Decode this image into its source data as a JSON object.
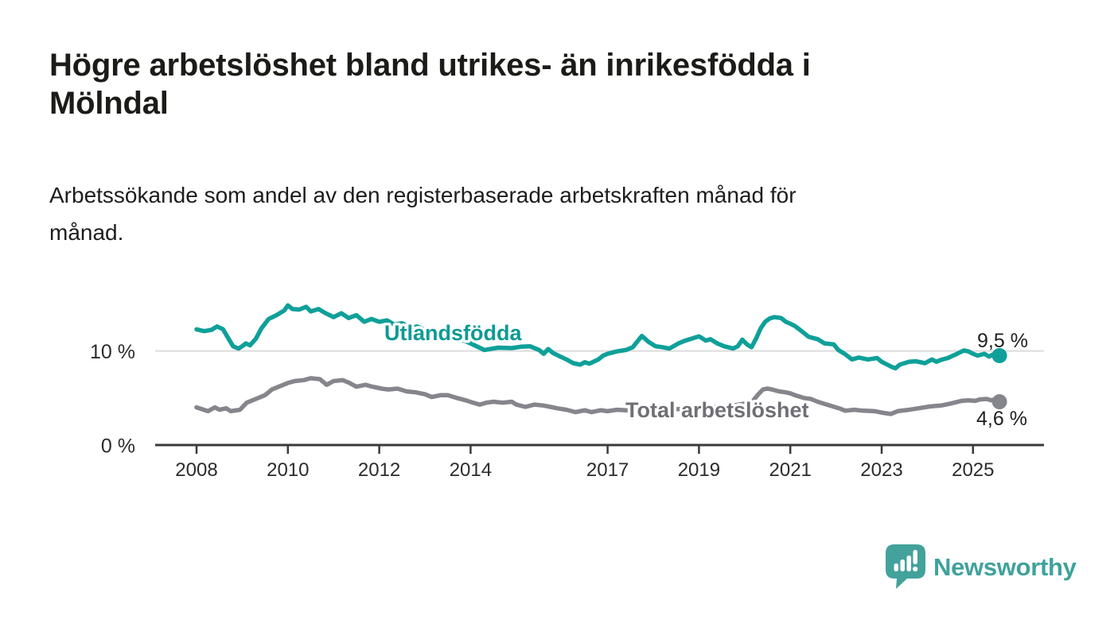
{
  "header": {
    "title": "Högre arbetslöshet bland utrikes- än inrikesfödda i\nMölndal",
    "subtitle": "Arbetssökande som andel av den registerbaserade arbetskraften månad för\nmånad."
  },
  "footer": {
    "brand": "Newsworthy"
  },
  "colors": {
    "axis": "#3a3a3a",
    "grid": "#dcdcdc",
    "tick_text": "#2c2c2c",
    "value_text": "#1f1f1f",
    "teal": "#0fa099",
    "teal_label": "#0d9a94",
    "gray_line": "#85858c",
    "gray_label": "#6f6f75",
    "logo": "#43a29b"
  },
  "chart_data": {
    "type": "line",
    "title": "Högre arbetslöshet bland utrikes- än inrikesfödda i Mölndal",
    "subtitle": "Arbetssökande som andel av den registerbaserade arbetskraften månad för månad.",
    "unit": "%",
    "xlabel": "",
    "ylabel": "",
    "x_range": [
      2008,
      2025.58
    ],
    "ylim": [
      0,
      16
    ],
    "grid": "single horizontal gridline at 10 %",
    "legend_position": "labels drawn on lines",
    "x_ticks": [
      2008,
      2010,
      2012,
      2014,
      2017,
      2019,
      2021,
      2023,
      2025
    ],
    "y_ticks": [
      {
        "value": 0,
        "label": "0 %"
      },
      {
        "value": 10,
        "label": "10 %"
      }
    ],
    "series": [
      {
        "name": "Utlandsfödda",
        "color": "#0fa099",
        "end_label": "9,5 %",
        "end_value": 9.5,
        "points": [
          [
            2008.0,
            12.3
          ],
          [
            2008.17,
            12.1
          ],
          [
            2008.33,
            12.25
          ],
          [
            2008.45,
            12.6
          ],
          [
            2008.58,
            12.3
          ],
          [
            2008.7,
            11.3
          ],
          [
            2008.8,
            10.5
          ],
          [
            2008.92,
            10.25
          ],
          [
            2009.0,
            10.5
          ],
          [
            2009.08,
            10.8
          ],
          [
            2009.17,
            10.6
          ],
          [
            2009.3,
            11.3
          ],
          [
            2009.42,
            12.4
          ],
          [
            2009.58,
            13.4
          ],
          [
            2009.75,
            13.8
          ],
          [
            2009.92,
            14.3
          ],
          [
            2010.0,
            14.85
          ],
          [
            2010.1,
            14.45
          ],
          [
            2010.25,
            14.4
          ],
          [
            2010.4,
            14.7
          ],
          [
            2010.5,
            14.2
          ],
          [
            2010.67,
            14.45
          ],
          [
            2010.83,
            14.0
          ],
          [
            2011.0,
            13.6
          ],
          [
            2011.17,
            14.0
          ],
          [
            2011.33,
            13.5
          ],
          [
            2011.5,
            13.8
          ],
          [
            2011.67,
            13.1
          ],
          [
            2011.83,
            13.4
          ],
          [
            2012.0,
            13.1
          ],
          [
            2012.17,
            13.25
          ],
          [
            2012.33,
            12.8
          ],
          [
            2012.5,
            12.95
          ],
          [
            2012.67,
            12.5
          ],
          [
            2012.83,
            12.6
          ],
          [
            2013.0,
            12.25
          ],
          [
            2013.25,
            11.95
          ],
          [
            2013.5,
            11.7
          ],
          [
            2013.75,
            11.3
          ],
          [
            2014.0,
            10.8
          ],
          [
            2014.3,
            10.1
          ],
          [
            2014.6,
            10.35
          ],
          [
            2014.9,
            10.3
          ],
          [
            2015.1,
            10.45
          ],
          [
            2015.3,
            10.5
          ],
          [
            2015.5,
            10.1
          ],
          [
            2015.6,
            9.7
          ],
          [
            2015.7,
            10.2
          ],
          [
            2015.8,
            9.8
          ],
          [
            2015.9,
            9.55
          ],
          [
            2016.1,
            9.1
          ],
          [
            2016.25,
            8.7
          ],
          [
            2016.4,
            8.55
          ],
          [
            2016.5,
            8.8
          ],
          [
            2016.6,
            8.65
          ],
          [
            2016.8,
            9.1
          ],
          [
            2016.9,
            9.5
          ],
          [
            2017.0,
            9.7
          ],
          [
            2017.2,
            9.95
          ],
          [
            2017.4,
            10.1
          ],
          [
            2017.55,
            10.4
          ],
          [
            2017.75,
            11.6
          ],
          [
            2017.9,
            10.95
          ],
          [
            2018.05,
            10.5
          ],
          [
            2018.2,
            10.4
          ],
          [
            2018.35,
            10.25
          ],
          [
            2018.55,
            10.8
          ],
          [
            2018.7,
            11.1
          ],
          [
            2018.9,
            11.4
          ],
          [
            2019.0,
            11.55
          ],
          [
            2019.15,
            11.1
          ],
          [
            2019.25,
            11.25
          ],
          [
            2019.4,
            10.8
          ],
          [
            2019.55,
            10.5
          ],
          [
            2019.75,
            10.25
          ],
          [
            2019.85,
            10.5
          ],
          [
            2019.95,
            11.2
          ],
          [
            2020.05,
            10.7
          ],
          [
            2020.15,
            10.4
          ],
          [
            2020.25,
            11.3
          ],
          [
            2020.35,
            12.4
          ],
          [
            2020.45,
            13.1
          ],
          [
            2020.55,
            13.45
          ],
          [
            2020.65,
            13.6
          ],
          [
            2020.8,
            13.5
          ],
          [
            2020.9,
            13.1
          ],
          [
            2021.0,
            12.9
          ],
          [
            2021.1,
            12.65
          ],
          [
            2021.25,
            12.1
          ],
          [
            2021.4,
            11.5
          ],
          [
            2021.6,
            11.25
          ],
          [
            2021.75,
            10.8
          ],
          [
            2021.95,
            10.7
          ],
          [
            2022.05,
            10.1
          ],
          [
            2022.2,
            9.65
          ],
          [
            2022.35,
            9.1
          ],
          [
            2022.5,
            9.3
          ],
          [
            2022.7,
            9.1
          ],
          [
            2022.9,
            9.25
          ],
          [
            2023.0,
            8.85
          ],
          [
            2023.2,
            8.35
          ],
          [
            2023.3,
            8.15
          ],
          [
            2023.4,
            8.55
          ],
          [
            2023.6,
            8.85
          ],
          [
            2023.75,
            8.9
          ],
          [
            2023.95,
            8.7
          ],
          [
            2024.1,
            9.1
          ],
          [
            2024.2,
            8.85
          ],
          [
            2024.3,
            9.05
          ],
          [
            2024.45,
            9.25
          ],
          [
            2024.65,
            9.7
          ],
          [
            2024.8,
            10.05
          ],
          [
            2024.9,
            9.95
          ],
          [
            2025.0,
            9.7
          ],
          [
            2025.1,
            9.5
          ],
          [
            2025.25,
            9.7
          ],
          [
            2025.35,
            9.4
          ],
          [
            2025.45,
            9.65
          ],
          [
            2025.58,
            9.5
          ]
        ]
      },
      {
        "name": "Total arbetslöshet",
        "color": "#85858c",
        "end_label": "4,6 %",
        "end_value": 4.6,
        "points": [
          [
            2008.0,
            4.0
          ],
          [
            2008.25,
            3.6
          ],
          [
            2008.4,
            4.0
          ],
          [
            2008.5,
            3.75
          ],
          [
            2008.65,
            3.9
          ],
          [
            2008.75,
            3.6
          ],
          [
            2008.95,
            3.75
          ],
          [
            2009.1,
            4.5
          ],
          [
            2009.3,
            4.9
          ],
          [
            2009.5,
            5.3
          ],
          [
            2009.65,
            5.9
          ],
          [
            2009.8,
            6.2
          ],
          [
            2010.0,
            6.6
          ],
          [
            2010.15,
            6.8
          ],
          [
            2010.35,
            6.9
          ],
          [
            2010.5,
            7.1
          ],
          [
            2010.7,
            7.0
          ],
          [
            2010.85,
            6.4
          ],
          [
            2011.0,
            6.8
          ],
          [
            2011.2,
            6.9
          ],
          [
            2011.35,
            6.6
          ],
          [
            2011.5,
            6.2
          ],
          [
            2011.7,
            6.4
          ],
          [
            2011.85,
            6.2
          ],
          [
            2012.05,
            6.0
          ],
          [
            2012.2,
            5.9
          ],
          [
            2012.4,
            6.0
          ],
          [
            2012.6,
            5.7
          ],
          [
            2012.8,
            5.6
          ],
          [
            2013.0,
            5.4
          ],
          [
            2013.15,
            5.1
          ],
          [
            2013.35,
            5.3
          ],
          [
            2013.5,
            5.3
          ],
          [
            2013.7,
            5.0
          ],
          [
            2013.9,
            4.75
          ],
          [
            2014.05,
            4.5
          ],
          [
            2014.2,
            4.3
          ],
          [
            2014.35,
            4.5
          ],
          [
            2014.5,
            4.6
          ],
          [
            2014.7,
            4.5
          ],
          [
            2014.9,
            4.6
          ],
          [
            2015.0,
            4.3
          ],
          [
            2015.2,
            4.05
          ],
          [
            2015.4,
            4.3
          ],
          [
            2015.6,
            4.2
          ],
          [
            2015.75,
            4.05
          ],
          [
            2015.9,
            3.9
          ],
          [
            2016.1,
            3.75
          ],
          [
            2016.3,
            3.5
          ],
          [
            2016.5,
            3.7
          ],
          [
            2016.65,
            3.5
          ],
          [
            2016.85,
            3.7
          ],
          [
            2017.0,
            3.6
          ],
          [
            2017.2,
            3.75
          ],
          [
            2017.4,
            3.7
          ],
          [
            2017.55,
            3.6
          ],
          [
            2017.8,
            3.7
          ],
          [
            2018.0,
            3.8
          ],
          [
            2018.25,
            3.7
          ],
          [
            2018.5,
            3.8
          ],
          [
            2018.75,
            3.9
          ],
          [
            2019.0,
            4.0
          ],
          [
            2019.25,
            4.0
          ],
          [
            2019.5,
            4.1
          ],
          [
            2019.75,
            4.2
          ],
          [
            2020.0,
            4.4
          ],
          [
            2020.15,
            4.5
          ],
          [
            2020.3,
            5.4
          ],
          [
            2020.4,
            5.9
          ],
          [
            2020.5,
            6.0
          ],
          [
            2020.6,
            5.9
          ],
          [
            2020.75,
            5.7
          ],
          [
            2020.9,
            5.6
          ],
          [
            2021.0,
            5.5
          ],
          [
            2021.1,
            5.3
          ],
          [
            2021.3,
            5.0
          ],
          [
            2021.45,
            4.9
          ],
          [
            2021.6,
            4.6
          ],
          [
            2021.8,
            4.3
          ],
          [
            2022.0,
            4.0
          ],
          [
            2022.1,
            3.85
          ],
          [
            2022.2,
            3.65
          ],
          [
            2022.4,
            3.75
          ],
          [
            2022.6,
            3.65
          ],
          [
            2022.85,
            3.6
          ],
          [
            2023.05,
            3.4
          ],
          [
            2023.2,
            3.3
          ],
          [
            2023.35,
            3.6
          ],
          [
            2023.6,
            3.75
          ],
          [
            2023.8,
            3.9
          ],
          [
            2024.05,
            4.1
          ],
          [
            2024.3,
            4.2
          ],
          [
            2024.5,
            4.4
          ],
          [
            2024.75,
            4.7
          ],
          [
            2024.9,
            4.75
          ],
          [
            2025.05,
            4.7
          ],
          [
            2025.15,
            4.85
          ],
          [
            2025.3,
            4.9
          ],
          [
            2025.4,
            4.75
          ],
          [
            2025.5,
            4.9
          ],
          [
            2025.58,
            4.6
          ]
        ]
      }
    ]
  }
}
